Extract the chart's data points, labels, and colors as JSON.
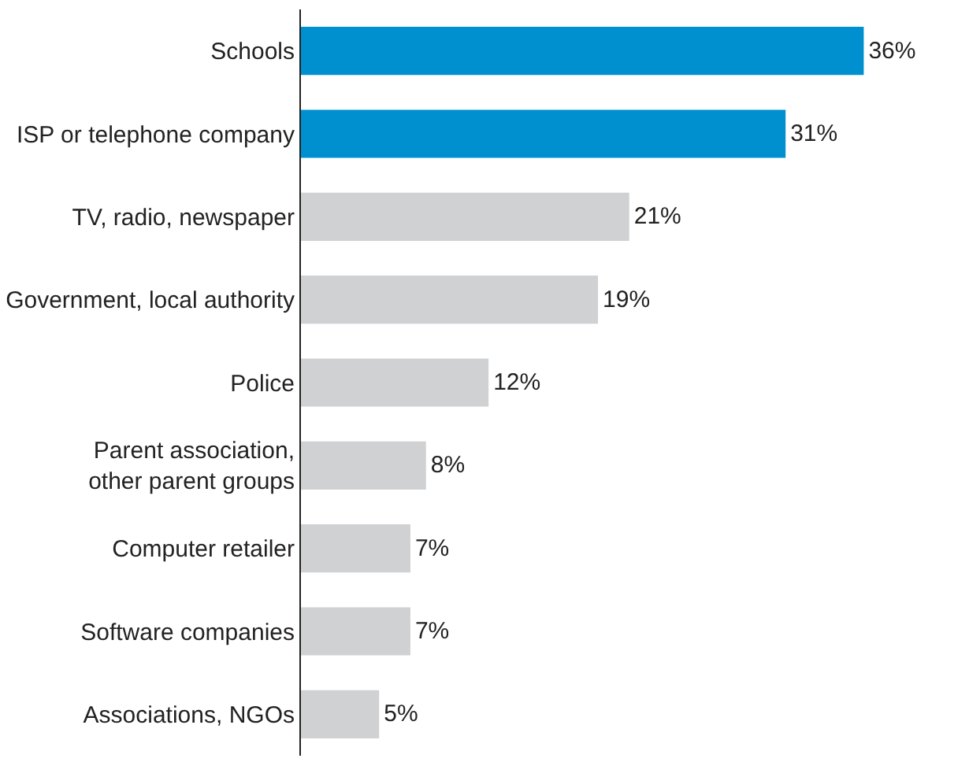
{
  "chart_data": {
    "type": "bar",
    "orientation": "horizontal",
    "categories": [
      "Schools",
      "ISP or telephone company",
      "TV, radio, newspaper",
      "Government, local authority",
      "Police",
      "Parent association,\nother parent groups",
      "Computer retailer",
      "Software companies",
      "Associations, NGOs"
    ],
    "values": [
      36,
      31,
      21,
      19,
      12,
      8,
      7,
      7,
      5
    ],
    "colors": [
      "#0090d0",
      "#0090d0",
      "#d0d1d3",
      "#d0d1d3",
      "#d0d1d3",
      "#d0d1d3",
      "#d0d1d3",
      "#d0d1d3",
      "#d0d1d3"
    ],
    "value_labels": [
      "36%",
      "31%",
      "21%",
      "19%",
      "12%",
      "8%",
      "7%",
      "7%",
      "5%"
    ]
  }
}
